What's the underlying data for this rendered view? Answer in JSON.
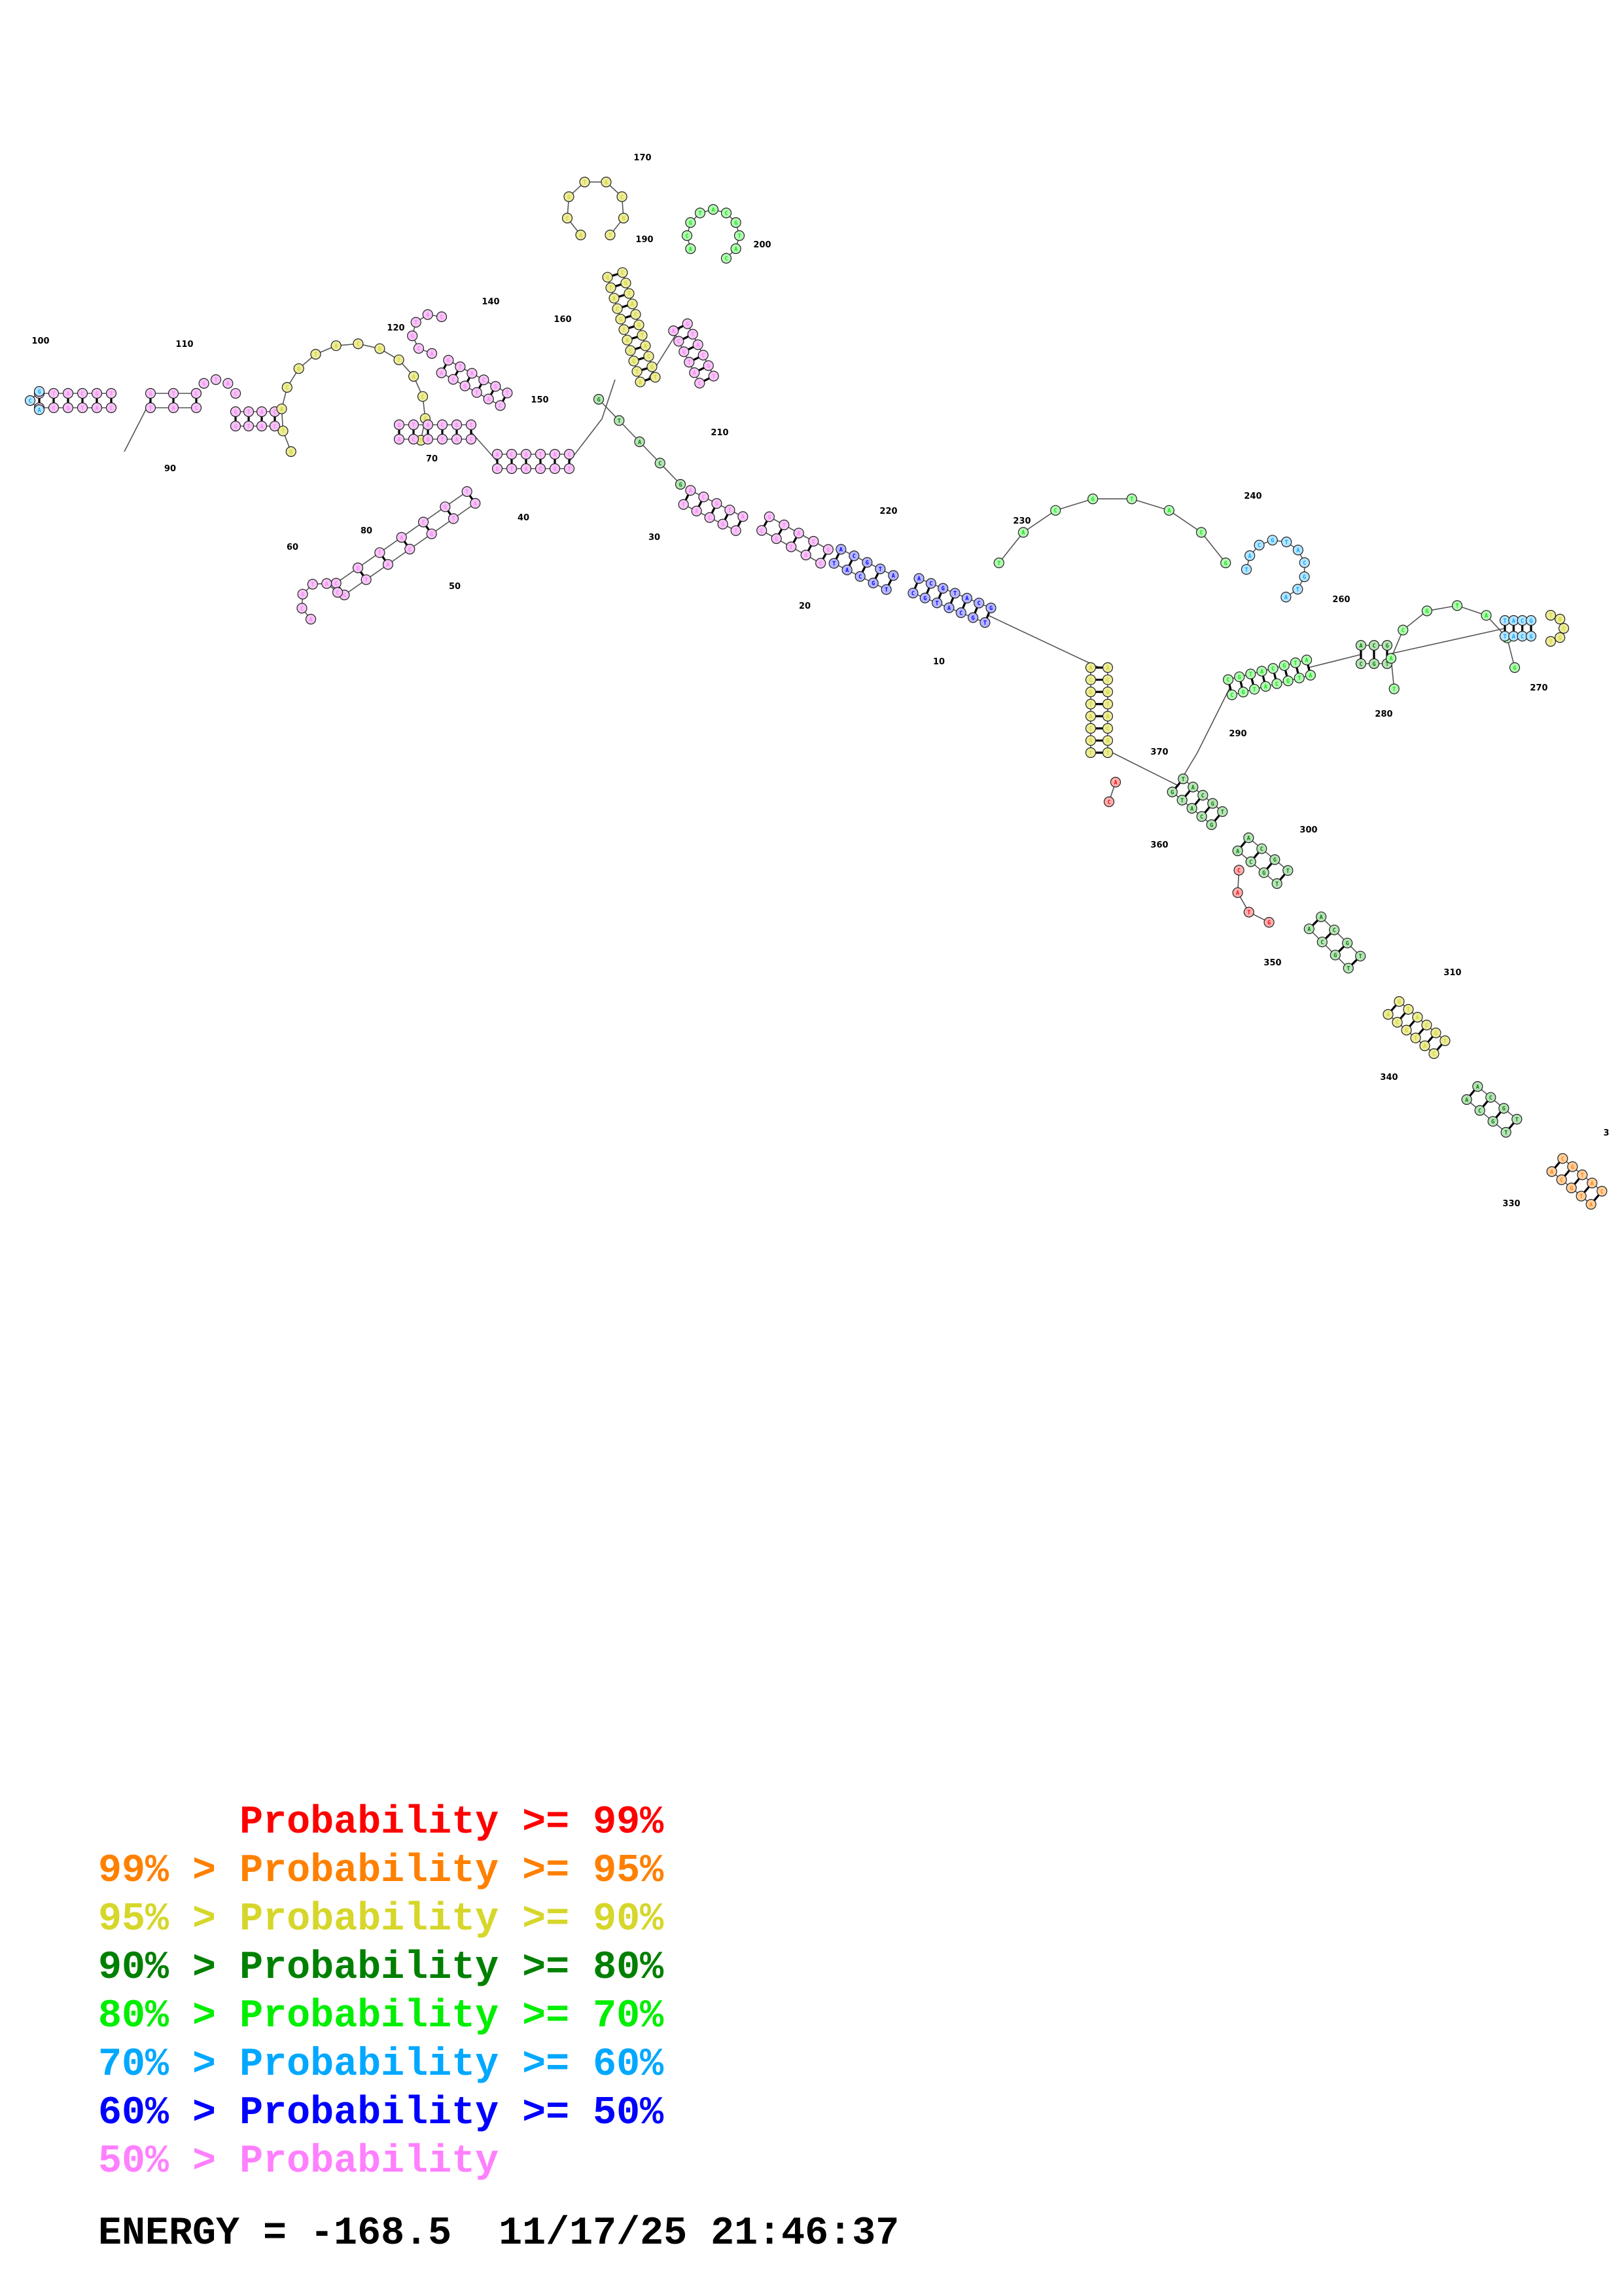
{
  "structure": {
    "numbers": [
      "10",
      "20",
      "30",
      "40",
      "50",
      "60",
      "70",
      "80",
      "90",
      "100",
      "110",
      "120",
      "140",
      "150",
      "160",
      "170",
      "190",
      "200",
      "210",
      "220",
      "230",
      "240",
      "260",
      "270",
      "280",
      "290",
      "300",
      "310",
      "330",
      "340",
      "350",
      "360",
      "370",
      "3"
    ],
    "colors": {
      "p99": "#ff0000",
      "p95": "#ff8000",
      "p90": "#d6d62b",
      "p80": "#008000",
      "p70": "#00ee00",
      "p60": "#00a8ff",
      "p50": "#0000ff",
      "low": "#ff80ff"
    },
    "node_fills": {
      "p99": "#ffb0b0",
      "p95": "#ffd0a0",
      "p90": "#ecec9c",
      "p80": "#b8e2b8",
      "p70": "#b6f7b6",
      "p60": "#b6e4ff",
      "p50": "#b6b6ff",
      "low": "#f4c6f4"
    }
  },
  "legend": [
    {
      "prefix": "",
      "sep": "",
      "label": "Probability",
      "op": ">=",
      "value": "99%",
      "color": "#ff0000"
    },
    {
      "prefix": "99%",
      "sep": ">",
      "label": "Probability",
      "op": ">=",
      "value": "95%",
      "color": "#ff8000"
    },
    {
      "prefix": "95%",
      "sep": ">",
      "label": "Probability",
      "op": ">=",
      "value": "90%",
      "color": "#d6d62b"
    },
    {
      "prefix": "90%",
      "sep": ">",
      "label": "Probability",
      "op": ">=",
      "value": "80%",
      "color": "#008000"
    },
    {
      "prefix": "80%",
      "sep": ">",
      "label": "Probability",
      "op": ">=",
      "value": "70%",
      "color": "#00ee00"
    },
    {
      "prefix": "70%",
      "sep": ">",
      "label": "Probability",
      "op": ">=",
      "value": "60%",
      "color": "#00a8ff"
    },
    {
      "prefix": "60%",
      "sep": ">",
      "label": "Probability",
      "op": ">=",
      "value": "50%",
      "color": "#0000ff"
    },
    {
      "prefix": "50%",
      "sep": ">",
      "label": "Probability",
      "op": "",
      "value": "",
      "color": "#ff80ff"
    }
  ],
  "energy": {
    "text": "ENERGY = -168.5  11/17/25 21:46:37"
  }
}
